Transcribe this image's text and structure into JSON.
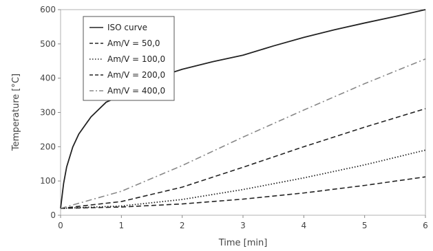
{
  "chart_data": {
    "type": "line",
    "xlabel": "Time [min]",
    "ylabel": "Temperature [°C]",
    "xlim": [
      0,
      6
    ],
    "ylim": [
      0,
      600
    ],
    "xticks": [
      "0",
      "1",
      "2",
      "3",
      "4",
      "5",
      "6"
    ],
    "yticks": [
      "0",
      "100",
      "200",
      "300",
      "400",
      "500",
      "600"
    ],
    "grid": false,
    "legend_position": "top-left",
    "series": [
      {
        "name": "ISO curve",
        "style": "solid",
        "color": "#222222",
        "x": [
          0,
          0.05,
          0.1,
          0.2,
          0.3,
          0.5,
          0.75,
          1,
          1.5,
          2,
          2.5,
          3,
          3.5,
          4,
          4.5,
          5,
          5.5,
          6
        ],
        "y": [
          20,
          93,
          141,
          199,
          237,
          287,
          330,
          349,
          397,
          426,
          448,
          467,
          494,
          519,
          541,
          561,
          580,
          600
        ]
      },
      {
        "name": "Am/V = 50,0",
        "style": "dash-long",
        "color": "#222222",
        "x": [
          0,
          1,
          2,
          3,
          4,
          5,
          6
        ],
        "y": [
          20,
          24,
          33,
          47,
          65,
          87,
          112
        ]
      },
      {
        "name": "Am/V = 100,0",
        "style": "dotted",
        "color": "#222222",
        "x": [
          0,
          1,
          2,
          3,
          4,
          5,
          6
        ],
        "y": [
          20,
          27,
          46,
          75,
          109,
          147,
          190
        ]
      },
      {
        "name": "Am/V = 200,0",
        "style": "dash-long",
        "color": "#222222",
        "x": [
          0,
          1,
          2,
          3,
          4,
          5,
          6
        ],
        "y": [
          20,
          40,
          82,
          140,
          200,
          257,
          311
        ]
      },
      {
        "name": "Am/V = 400,0",
        "style": "dash-dot",
        "color": "#888888",
        "x": [
          0,
          1,
          2,
          3,
          4,
          5,
          6
        ],
        "y": [
          20,
          70,
          145,
          228,
          307,
          384,
          456
        ]
      }
    ]
  }
}
